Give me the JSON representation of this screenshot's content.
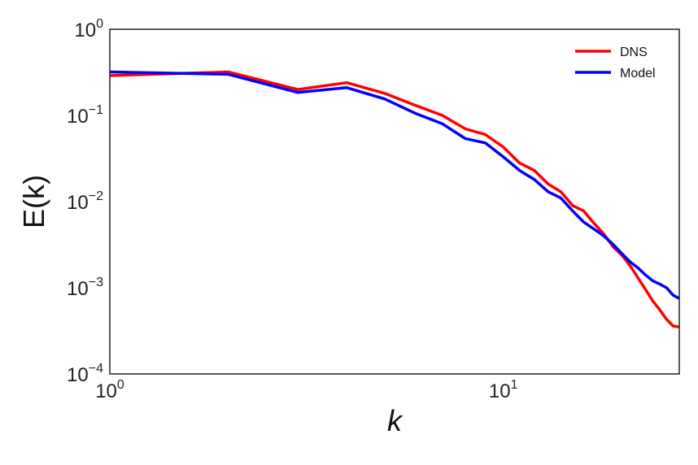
{
  "chart_data": {
    "type": "line",
    "x_scale": "log",
    "y_scale": "log",
    "xlabel": "k",
    "ylabel": "E(k)",
    "xlim": [
      1,
      28
    ],
    "ylim": [
      0.0001,
      1
    ],
    "grid": false,
    "legend_position": "top-right",
    "x_ticks": [
      {
        "value": 1,
        "base": "10",
        "exp": "0"
      },
      {
        "value": 10,
        "base": "10",
        "exp": "1"
      }
    ],
    "y_ticks": [
      {
        "value": 1,
        "base": "10",
        "exp": "0"
      },
      {
        "value": 0.1,
        "base": "10",
        "exp": "−1"
      },
      {
        "value": 0.01,
        "base": "10",
        "exp": "−2"
      },
      {
        "value": 0.001,
        "base": "10",
        "exp": "−3"
      },
      {
        "value": 0.0001,
        "base": "10",
        "exp": "−4"
      }
    ],
    "x": [
      1,
      2,
      3,
      4,
      5,
      6,
      7,
      8,
      9,
      10,
      11,
      12,
      13,
      14,
      15,
      16,
      17,
      18,
      19,
      20,
      21,
      22,
      23,
      24,
      25,
      26,
      27,
      28
    ],
    "series": [
      {
        "name": "DNS",
        "color": "#ff0000",
        "values": [
          0.29,
          0.32,
          0.2,
          0.24,
          0.18,
          0.13,
          0.1,
          0.07,
          0.06,
          0.043,
          0.028,
          0.023,
          0.016,
          0.013,
          0.009,
          0.0078,
          0.0056,
          0.0042,
          0.003,
          0.0024,
          0.0018,
          0.0013,
          0.00095,
          0.0007,
          0.00055,
          0.00043,
          0.00036,
          0.00035
        ]
      },
      {
        "name": "Model",
        "color": "#0000ff",
        "values": [
          0.32,
          0.3,
          0.185,
          0.21,
          0.155,
          0.105,
          0.08,
          0.054,
          0.048,
          0.033,
          0.023,
          0.018,
          0.013,
          0.011,
          0.0078,
          0.0058,
          0.0048,
          0.004,
          0.0032,
          0.0025,
          0.002,
          0.0017,
          0.0014,
          0.0012,
          0.0011,
          0.001,
          0.00082,
          0.00075
        ]
      }
    ]
  }
}
